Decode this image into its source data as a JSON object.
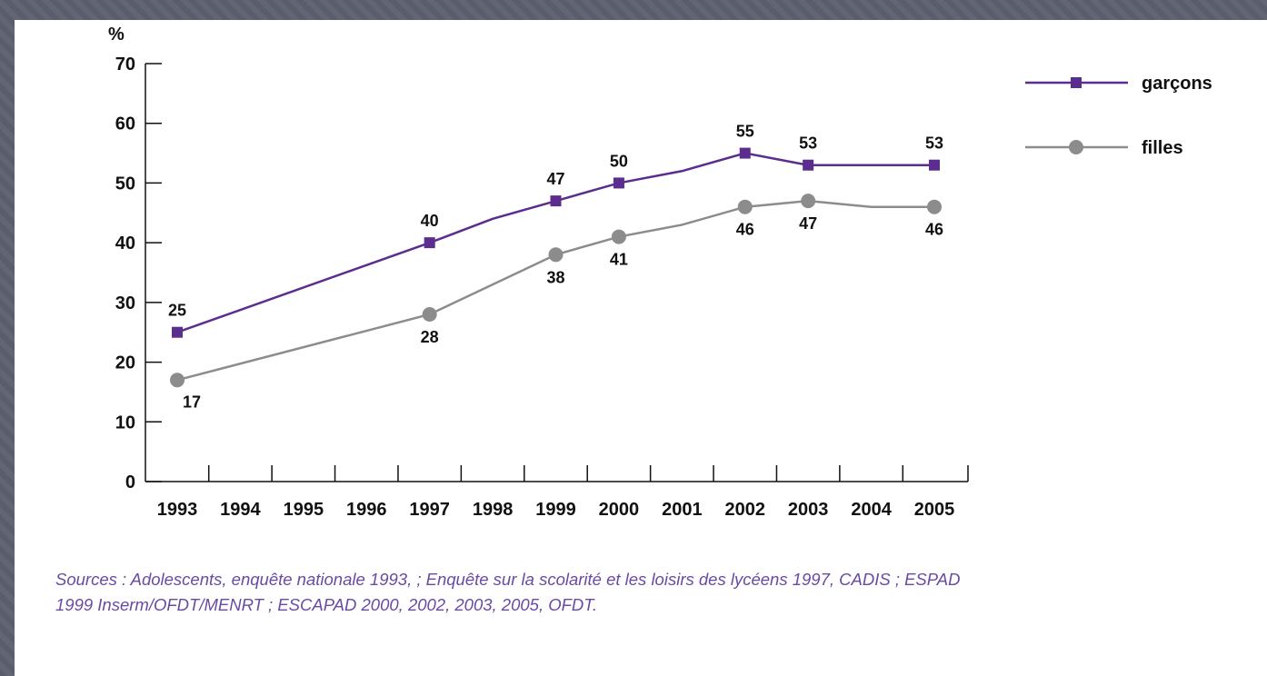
{
  "chart_data": {
    "type": "line",
    "y_unit": "%",
    "x": [
      "1993",
      "1994",
      "1995",
      "1996",
      "1997",
      "1998",
      "1999",
      "2000",
      "2001",
      "2002",
      "2003",
      "2004",
      "2005"
    ],
    "y_ticks": [
      "0",
      "10",
      "20",
      "30",
      "40",
      "50",
      "60",
      "70"
    ],
    "ylim": [
      0,
      70
    ],
    "series": [
      {
        "name": "garçons",
        "color": "#5b2d8e",
        "marker": "square",
        "points": [
          [
            1993,
            25
          ],
          [
            1997,
            40
          ],
          [
            1998,
            44
          ],
          [
            1999,
            47
          ],
          [
            2000,
            50
          ],
          [
            2001,
            52
          ],
          [
            2002,
            55
          ],
          [
            2003,
            53
          ],
          [
            2005,
            53
          ]
        ],
        "labels": [
          {
            "x": 1993,
            "y": 25,
            "text": "25",
            "pos": "above"
          },
          {
            "x": 1997,
            "y": 40,
            "text": "40",
            "pos": "above"
          },
          {
            "x": 1999,
            "y": 47,
            "text": "47",
            "pos": "above"
          },
          {
            "x": 2000,
            "y": 50,
            "text": "50",
            "pos": "above"
          },
          {
            "x": 2002,
            "y": 55,
            "text": "55",
            "pos": "above"
          },
          {
            "x": 2003,
            "y": 53,
            "text": "53",
            "pos": "above"
          },
          {
            "x": 2005,
            "y": 53,
            "text": "53",
            "pos": "above"
          }
        ]
      },
      {
        "name": "filles",
        "color": "#8c8c8c",
        "marker": "circle",
        "points": [
          [
            1993,
            17
          ],
          [
            1997,
            28
          ],
          [
            1999,
            38
          ],
          [
            2000,
            41
          ],
          [
            2001,
            43
          ],
          [
            2002,
            46
          ],
          [
            2003,
            47
          ],
          [
            2004,
            46
          ],
          [
            2005,
            46
          ]
        ],
        "labels": [
          {
            "x": 1993,
            "y": 17,
            "text": "17",
            "pos": "below"
          },
          {
            "x": 1997,
            "y": 28,
            "text": "28",
            "pos": "below"
          },
          {
            "x": 1999,
            "y": 38,
            "text": "38",
            "pos": "below"
          },
          {
            "x": 2000,
            "y": 41,
            "text": "41",
            "pos": "below"
          },
          {
            "x": 2002,
            "y": 46,
            "text": "46",
            "pos": "below"
          },
          {
            "x": 2003,
            "y": 47,
            "text": "47",
            "pos": "below"
          },
          {
            "x": 2005,
            "y": 46,
            "text": "46",
            "pos": "below"
          }
        ]
      }
    ],
    "legend_position": "top-right",
    "grid": false
  },
  "source": {
    "line1": "Sources : Adolescents, enquête nationale 1993,  ; Enquête sur la scolarité et les loisirs des lycéens 1997, CADIS ; ESPAD",
    "line2": "1999 Inserm/OFDT/MENRT ; ESCAPAD 2000, 2002, 2003, 2005, OFDT."
  }
}
